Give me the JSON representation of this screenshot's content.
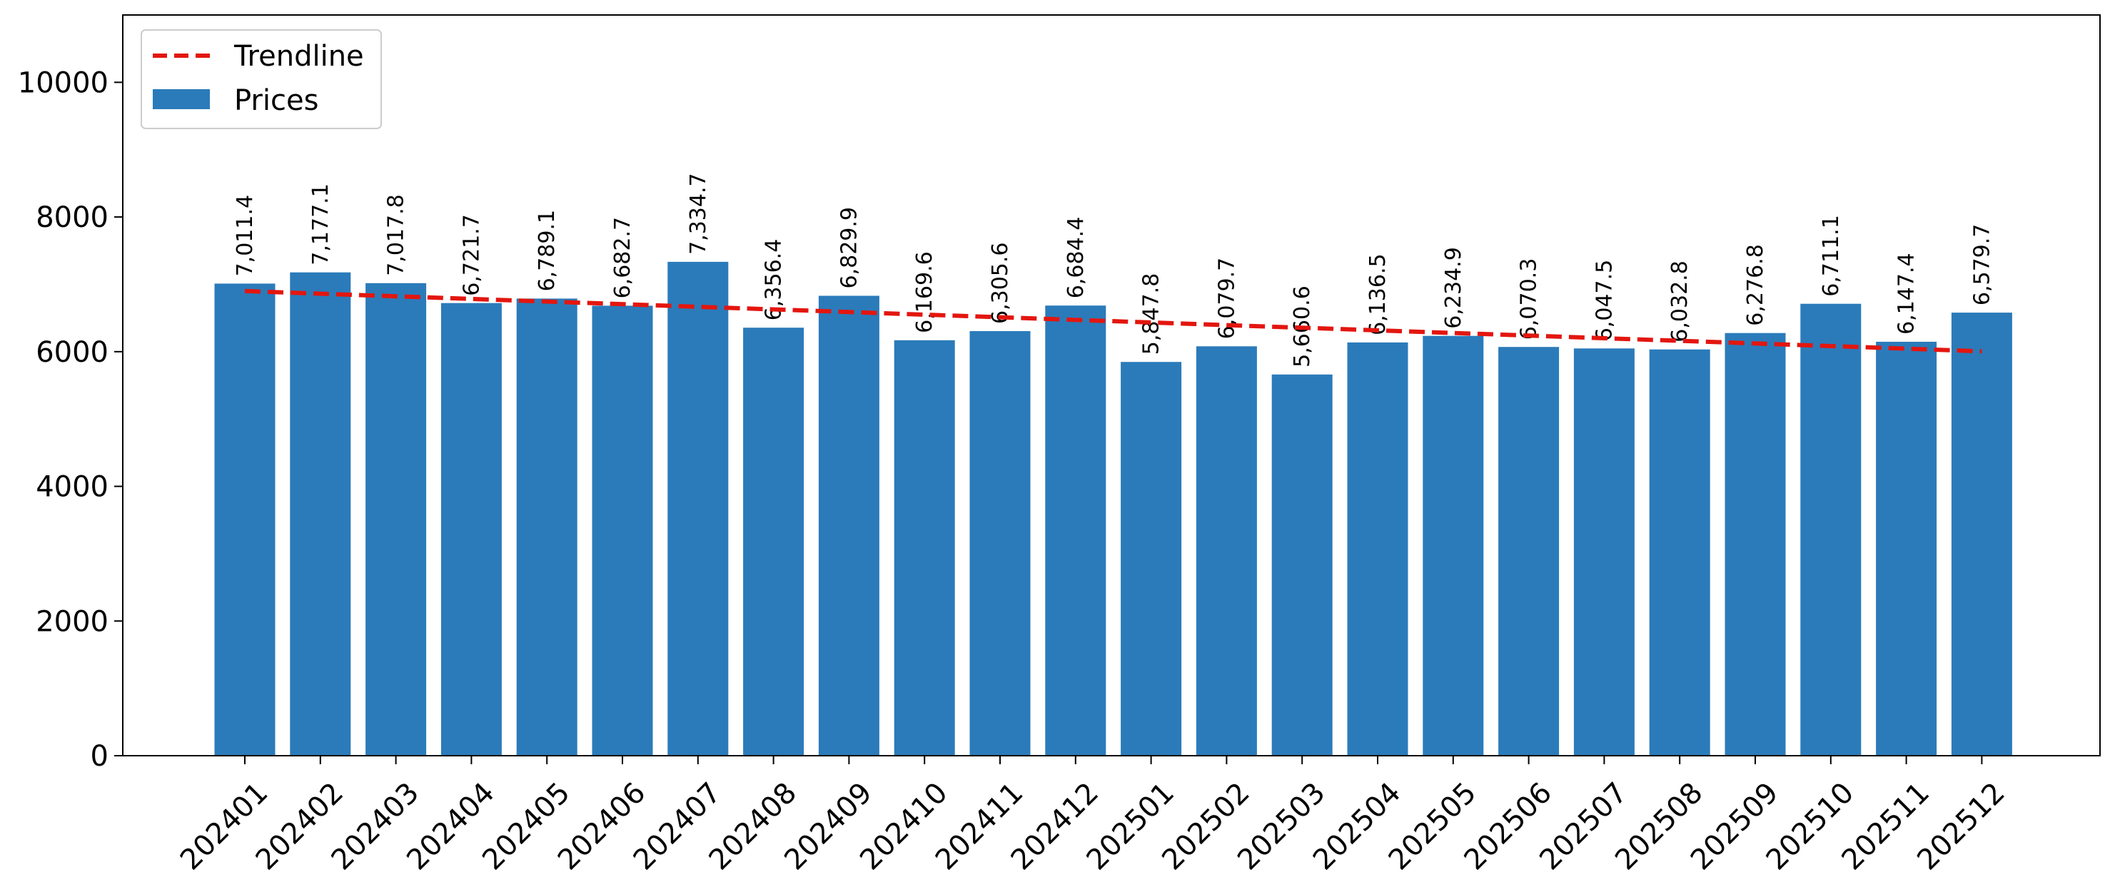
{
  "chart_data": {
    "type": "bar",
    "categories": [
      "202401",
      "202402",
      "202403",
      "202404",
      "202405",
      "202406",
      "202407",
      "202408",
      "202409",
      "202410",
      "202411",
      "202412",
      "202501",
      "202502",
      "202503",
      "202504",
      "202505",
      "202506",
      "202507",
      "202508",
      "202509",
      "202510",
      "202511",
      "202512"
    ],
    "series": [
      {
        "name": "Prices",
        "type": "bar",
        "color": "#2b7bba",
        "values": [
          7011.4,
          7177.1,
          7017.8,
          6721.7,
          6789.1,
          6682.7,
          7334.7,
          6356.4,
          6829.9,
          6169.6,
          6305.6,
          6684.4,
          5847.8,
          6079.7,
          5660.6,
          6136.5,
          6234.9,
          6070.3,
          6047.5,
          6032.8,
          6276.8,
          6711.1,
          6147.4,
          6579.7
        ]
      },
      {
        "name": "Trendline",
        "type": "line",
        "style": "dashed",
        "color": "#e3160f",
        "start": 6900,
        "end": 6005
      }
    ],
    "data_labels": [
      "7,011.4",
      "7,177.1",
      "7,017.8",
      "6,721.7",
      "6,789.1",
      "6,682.7",
      "7,334.7",
      "6,356.4",
      "6,829.9",
      "6,169.6",
      "6,305.6",
      "6,684.4",
      "5,847.8",
      "6,079.7",
      "5,660.6",
      "6,136.5",
      "6,234.9",
      "6,070.3",
      "6,047.5",
      "6,032.8",
      "6,276.8",
      "6,711.1",
      "6,147.4",
      "6,579.7"
    ],
    "y_ticks": [
      "0",
      "2000",
      "4000",
      "6000",
      "8000",
      "10000"
    ],
    "ylim": [
      0,
      11000
    ],
    "title": "",
    "xlabel": "",
    "ylabel": "",
    "grid": false,
    "legend_position": "top-left"
  }
}
